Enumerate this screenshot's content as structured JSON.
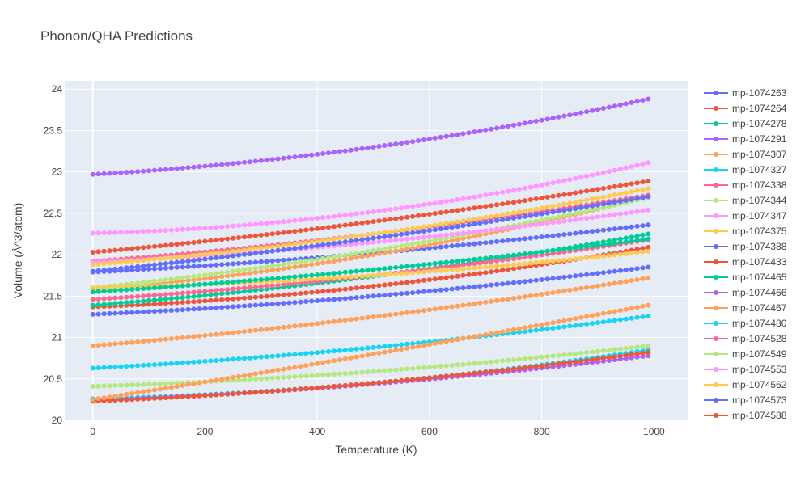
{
  "chart_data": {
    "type": "line",
    "title": "Phonon/QHA Predictions",
    "xlabel": "Temperature (K)",
    "ylabel": "Volume (Å^3/atom)",
    "xlim": [
      -50,
      1060
    ],
    "ylim": [
      20,
      24.1
    ],
    "xticks": [
      0,
      200,
      400,
      600,
      800,
      1000
    ],
    "yticks": [
      20,
      20.5,
      21,
      21.5,
      22,
      22.5,
      23,
      23.5,
      24
    ],
    "ytick_labels": [
      "20",
      "20.5",
      "21",
      "21.5",
      "22",
      "22.5",
      "23",
      "23.5",
      "24"
    ],
    "grid": true,
    "legend_position": "right",
    "x_range": [
      0,
      990
    ],
    "x_step": 10,
    "series": [
      {
        "name": "mp-1074263",
        "color": "#636efa",
        "values_at_x": {
          "0": 21.79,
          "500": 22.02,
          "990": 22.36
        }
      },
      {
        "name": "mp-1074264",
        "color": "#EF553B",
        "values_at_x": {
          "0": 21.37,
          "500": 21.62,
          "990": 22.09
        }
      },
      {
        "name": "mp-1074278",
        "color": "#00cc96",
        "values_at_x": {
          "0": 21.39,
          "500": 21.74,
          "990": 22.25
        }
      },
      {
        "name": "mp-1074291",
        "color": "#ab63fa",
        "values_at_x": {
          "0": 22.97,
          "500": 23.3,
          "990": 23.88
        }
      },
      {
        "name": "mp-1074307",
        "color": "#FFA15A",
        "values_at_x": {
          "0": 21.58,
          "500": 22.0,
          "990": 22.7
        }
      },
      {
        "name": "mp-1074327",
        "color": "#19d3f3",
        "values_at_x": {
          "0": 20.26,
          "500": 20.45,
          "990": 20.85
        }
      },
      {
        "name": "mp-1074338",
        "color": "#FF6692",
        "values_at_x": {
          "0": 21.46,
          "500": 21.75,
          "990": 22.18
        }
      },
      {
        "name": "mp-1074344",
        "color": "#B6E880",
        "values_at_x": {
          "0": 21.6,
          "500": 22.05,
          "990": 22.69
        }
      },
      {
        "name": "mp-1074347",
        "color": "#FF97FF",
        "values_at_x": {
          "0": 22.26,
          "500": 22.52,
          "990": 23.11
        }
      },
      {
        "name": "mp-1074375",
        "color": "#FECB52",
        "values_at_x": {
          "0": 21.6,
          "500": 21.75,
          "990": 22.04
        }
      },
      {
        "name": "mp-1074388",
        "color": "#636efa",
        "values_at_x": {
          "0": 21.28,
          "500": 21.5,
          "990": 21.85
        }
      },
      {
        "name": "mp-1074433",
        "color": "#EF553B",
        "values_at_x": {
          "0": 22.03,
          "500": 22.4,
          "990": 22.89
        }
      },
      {
        "name": "mp-1074465",
        "color": "#00cc96",
        "values_at_x": {
          "0": 21.55,
          "500": 21.82,
          "990": 22.19
        }
      },
      {
        "name": "mp-1074466",
        "color": "#ab63fa",
        "values_at_x": {
          "0": 20.24,
          "500": 20.44,
          "990": 20.78
        }
      },
      {
        "name": "mp-1074467",
        "color": "#FFA15A",
        "values_at_x": {
          "0": 20.9,
          "500": 21.25,
          "990": 21.72
        }
      },
      {
        "name": "mp-1074480",
        "color": "#19d3f3",
        "values_at_x": {
          "0": 20.63,
          "500": 20.88,
          "990": 21.26
        }
      },
      {
        "name": "mp-1074528",
        "color": "#FF6692",
        "values_at_x": {
          "0": 21.92,
          "500": 22.25,
          "990": 22.72
        }
      },
      {
        "name": "mp-1074549",
        "color": "#B6E880",
        "values_at_x": {
          "0": 20.41,
          "500": 20.59,
          "990": 20.9
        }
      },
      {
        "name": "mp-1074553",
        "color": "#FF97FF",
        "values_at_x": {
          "0": 21.91,
          "500": 22.15,
          "990": 22.54
        }
      },
      {
        "name": "mp-1074562",
        "color": "#FECB52",
        "values_at_x": {
          "0": 21.88,
          "500": 22.25,
          "990": 22.8
        }
      },
      {
        "name": "mp-1074573",
        "color": "#636efa",
        "values_at_x": {
          "0": 21.8,
          "500": 22.2,
          "990": 22.7
        }
      },
      {
        "name": "mp-1074588",
        "color": "#EF553B",
        "values_at_x": {
          "0": 20.23,
          "500": 20.45,
          "990": 20.82
        }
      },
      {
        "name": "",
        "color": "#FFA15A",
        "values_at_x": {
          "0": 20.25,
          "500": 20.8,
          "990": 21.39
        }
      }
    ]
  }
}
